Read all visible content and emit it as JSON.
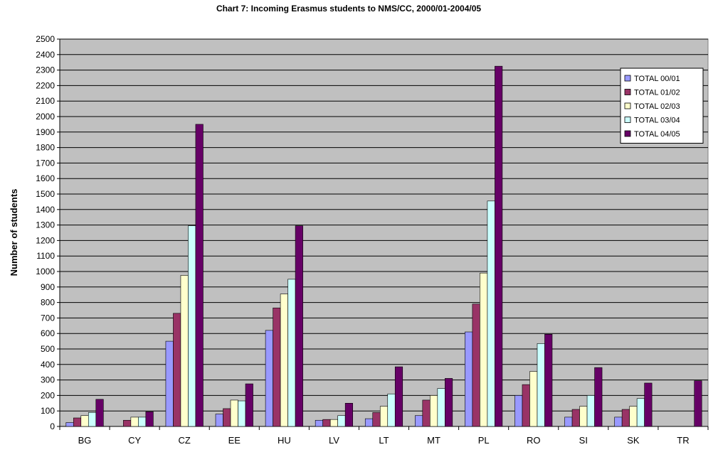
{
  "chart_data": {
    "type": "bar",
    "title": "Chart 7: Incoming Erasmus students to NMS/CC, 2000/01-2004/05",
    "xlabel": "",
    "ylabel": "Number of students",
    "ylim": [
      0,
      2500
    ],
    "ytick_step": 100,
    "grid": true,
    "legend_position": "top-right",
    "categories": [
      "BG",
      "CY",
      "CZ",
      "EE",
      "HU",
      "LV",
      "LT",
      "MT",
      "PL",
      "RO",
      "SI",
      "SK",
      "TR"
    ],
    "series": [
      {
        "name": "TOTAL 00/01",
        "color": "#9999ff",
        "values": [
          25,
          0,
          550,
          80,
          620,
          40,
          50,
          70,
          610,
          200,
          60,
          60,
          0
        ]
      },
      {
        "name": "TOTAL 01/02",
        "color": "#993366",
        "values": [
          55,
          40,
          730,
          115,
          765,
          45,
          90,
          170,
          790,
          270,
          110,
          110,
          0
        ]
      },
      {
        "name": "TOTAL 02/03",
        "color": "#ffffcc",
        "values": [
          70,
          60,
          975,
          170,
          855,
          45,
          130,
          200,
          990,
          355,
          130,
          130,
          0
        ]
      },
      {
        "name": "TOTAL 03/04",
        "color": "#ccffff",
        "values": [
          90,
          60,
          1295,
          165,
          950,
          70,
          210,
          245,
          1455,
          535,
          200,
          180,
          0
        ]
      },
      {
        "name": "TOTAL 04/05",
        "color": "#660066",
        "values": [
          175,
          95,
          1950,
          275,
          1295,
          150,
          385,
          310,
          2325,
          595,
          380,
          280,
          295
        ]
      }
    ],
    "colors": {
      "plot_background": "#c0c0c0",
      "gridline": "#000000",
      "bar_outline": "#000000"
    }
  }
}
